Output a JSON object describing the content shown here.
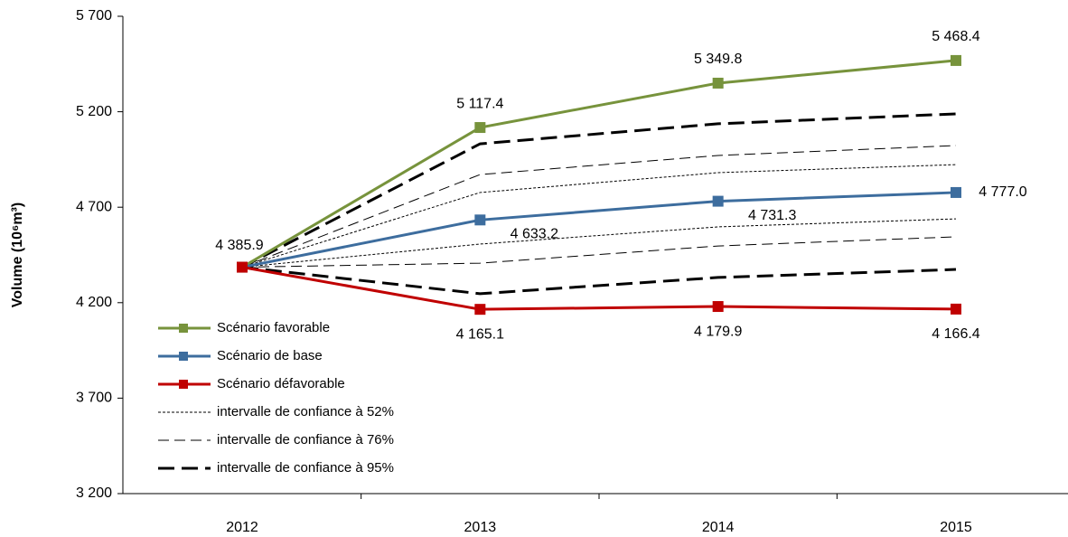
{
  "chart_data": {
    "type": "line",
    "y_label": "Volume (10⁶m³)",
    "categories": [
      "2012",
      "2013",
      "2014",
      "2015"
    ],
    "ylim": [
      3200,
      5700
    ],
    "yticks": [
      {
        "value": 3200,
        "label": "3 200"
      },
      {
        "value": 3700,
        "label": "3 700"
      },
      {
        "value": 4200,
        "label": "4 200"
      },
      {
        "value": 4700,
        "label": "4 700"
      },
      {
        "value": 5200,
        "label": "5 200"
      },
      {
        "value": 5700,
        "label": "5 700"
      }
    ],
    "legend": "lower left",
    "series": [
      {
        "name": "Scénario favorable",
        "color": "#77933c",
        "values": [
          4385.9,
          5117.4,
          5349.8,
          5468.4
        ],
        "value_labels": [
          null,
          "5 117.4",
          "5 349.8",
          "5 468.4"
        ]
      },
      {
        "name": "Scénario de base",
        "color": "#3d6d9e",
        "values": [
          4385.9,
          4633.2,
          4731.3,
          4777.0
        ],
        "value_labels": [
          "4 385.9",
          "4 633.2",
          "4 731.3",
          "4 777.0"
        ]
      },
      {
        "name": "Scénario défavorable",
        "color": "#c00000",
        "values": [
          4385.9,
          4165.1,
          4179.9,
          4166.4
        ],
        "value_labels": [
          null,
          "4 165.1",
          "4 179.9",
          "4 166.4"
        ]
      }
    ],
    "intervals": [
      {
        "name": "intervalle de confiance à 52%",
        "color": "#000000",
        "upper": [
          4385.9,
          4777,
          4881,
          4923
        ],
        "lower": [
          4385.9,
          4507,
          4597,
          4639
        ]
      },
      {
        "name": "intervalle de confiance à 76%",
        "color": "#000000",
        "upper": [
          4385.9,
          4871,
          4971,
          5023
        ],
        "lower": [
          4385.9,
          4407,
          4497,
          4545
        ]
      },
      {
        "name": "intervalle de confiance à 95%",
        "color": "#000000",
        "upper": [
          4385.9,
          5032,
          5137,
          5189
        ],
        "lower": [
          4385.9,
          4247,
          4332,
          4374
        ]
      }
    ]
  }
}
